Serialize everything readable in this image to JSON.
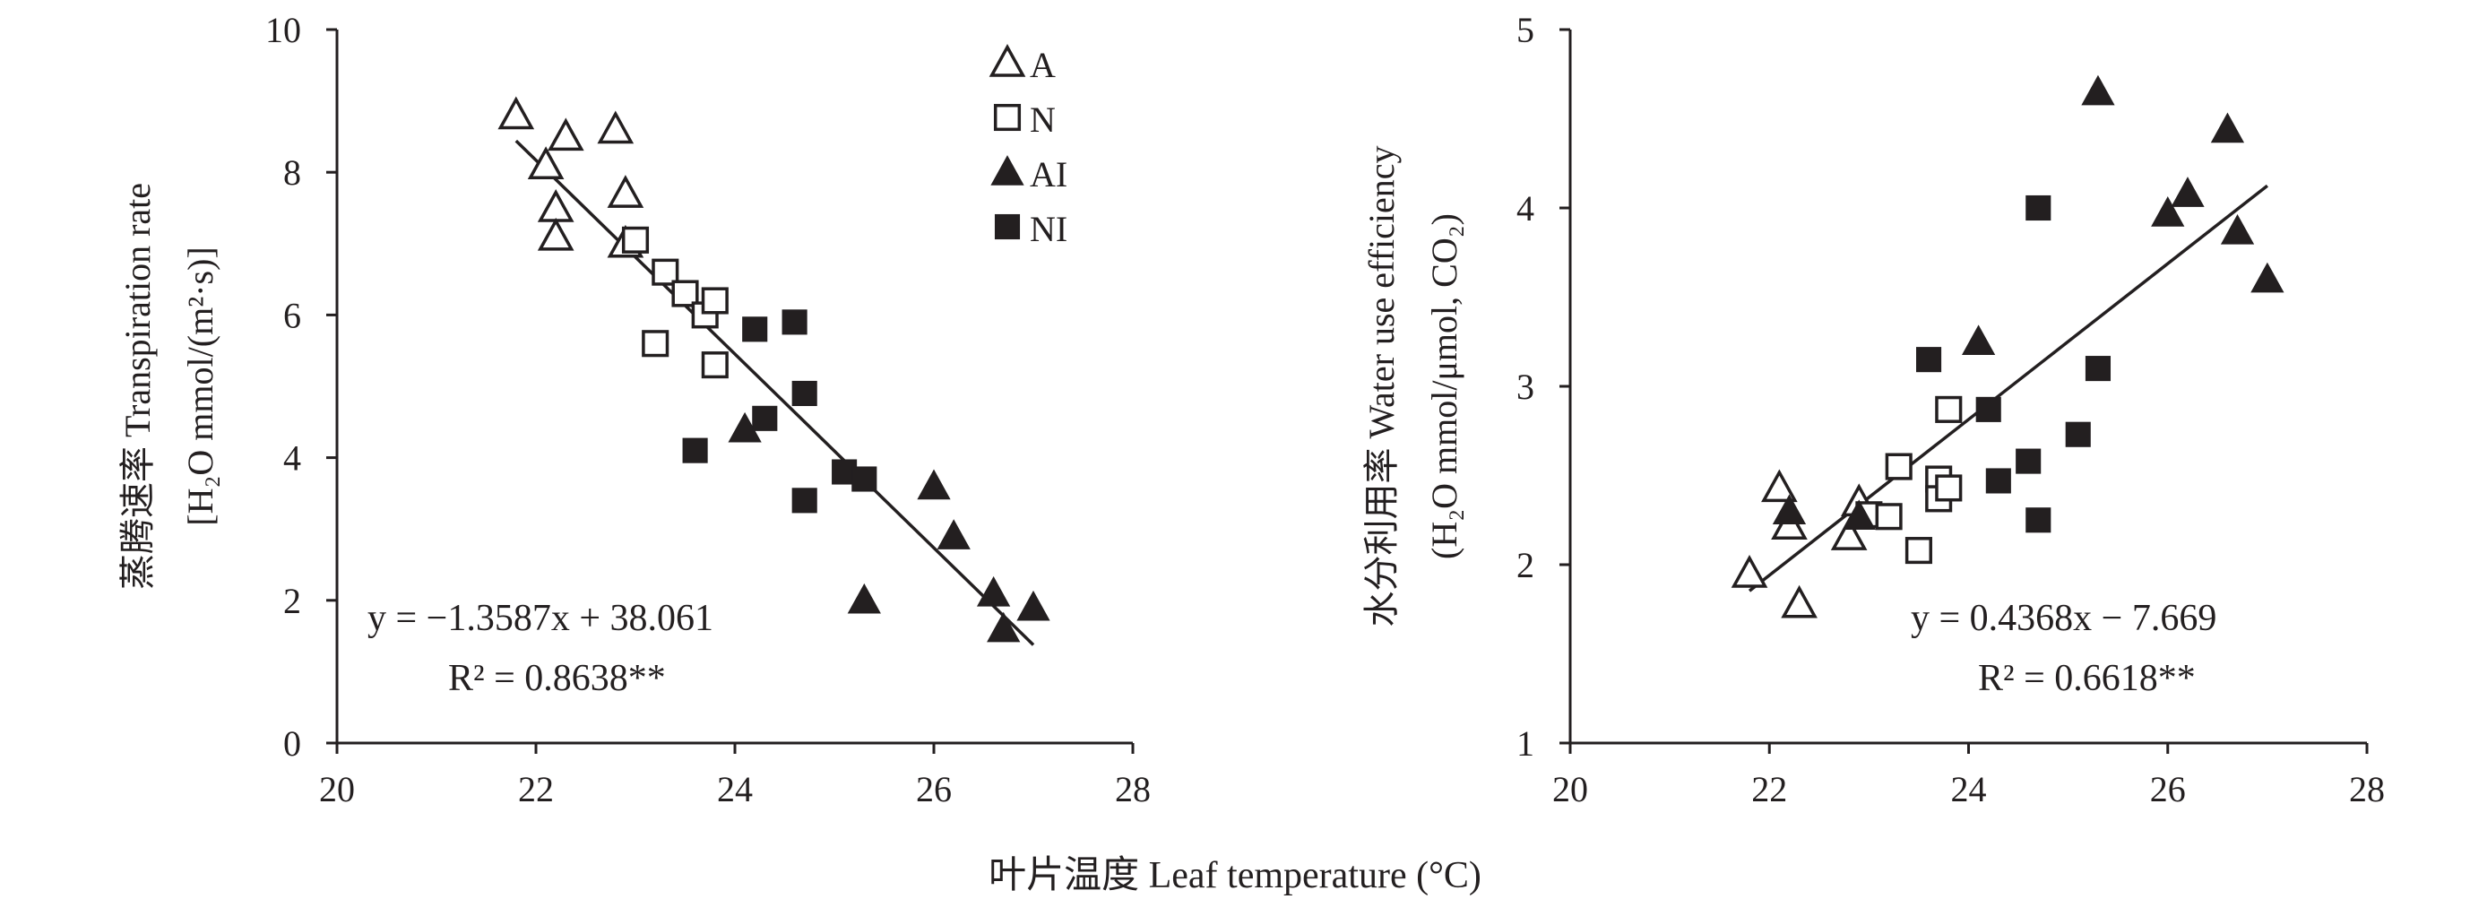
{
  "chart_data": [
    {
      "type": "scatter",
      "xlim": [
        20,
        28
      ],
      "ylim": [
        0,
        10
      ],
      "x_ticks": [
        "20",
        "22",
        "24",
        "26",
        "28"
      ],
      "y_ticks": [
        "0",
        "2",
        "4",
        "6",
        "8",
        "10"
      ],
      "ylabel_line1": "蒸腾速率 Transpiration rate",
      "ylabel_line2": "[H₂O mmol/(m²·s)]",
      "legend": [
        "A",
        "N",
        "AI",
        "NI"
      ],
      "equation": "y = −1.3587x + 38.061",
      "r2": "R² = 0.8638**",
      "fit": {
        "slope": -1.3587,
        "intercept": 38.061,
        "x_range": [
          21.8,
          27.0
        ]
      },
      "series": [
        {
          "name": "A",
          "marker": "open-triangle",
          "points": [
            [
              21.8,
              8.8
            ],
            [
              22.1,
              8.1
            ],
            [
              22.3,
              8.5
            ],
            [
              22.2,
              7.5
            ],
            [
              22.2,
              7.1
            ],
            [
              22.8,
              8.6
            ],
            [
              22.9,
              7.7
            ],
            [
              22.9,
              7.0
            ]
          ]
        },
        {
          "name": "N",
          "marker": "open-square",
          "points": [
            [
              23.0,
              7.05
            ],
            [
              23.3,
              6.6
            ],
            [
              23.5,
              6.3
            ],
            [
              23.7,
              6.0
            ],
            [
              23.8,
              6.2
            ],
            [
              23.2,
              5.6
            ],
            [
              23.8,
              5.3
            ]
          ]
        },
        {
          "name": "AI",
          "marker": "filled-triangle",
          "points": [
            [
              24.1,
              4.4
            ],
            [
              25.3,
              2.0
            ],
            [
              26.0,
              3.6
            ],
            [
              26.2,
              2.9
            ],
            [
              26.6,
              2.1
            ],
            [
              26.7,
              1.6
            ],
            [
              27.0,
              1.9
            ]
          ]
        },
        {
          "name": "NI",
          "marker": "filled-square",
          "points": [
            [
              23.6,
              4.1
            ],
            [
              24.2,
              5.8
            ],
            [
              24.3,
              4.55
            ],
            [
              24.6,
              5.9
            ],
            [
              24.7,
              4.9
            ],
            [
              24.7,
              3.4
            ],
            [
              25.1,
              3.8
            ],
            [
              25.3,
              3.7
            ]
          ]
        }
      ]
    },
    {
      "type": "scatter",
      "xlim": [
        20,
        28
      ],
      "ylim": [
        1,
        5
      ],
      "x_ticks": [
        "20",
        "22",
        "24",
        "26",
        "28"
      ],
      "y_ticks": [
        "1",
        "2",
        "3",
        "4",
        "5"
      ],
      "ylabel_line1": "水分利用率 Water use efficiency",
      "ylabel_line2": "(H₂O mmol/μmol, CO₂)",
      "equation": "y = 0.4368x − 7.669",
      "r2": "R² = 0.6618**",
      "fit": {
        "slope": 0.4368,
        "intercept": -7.669,
        "x_range": [
          21.8,
          27.0
        ]
      },
      "series": [
        {
          "name": "A",
          "marker": "open-triangle",
          "points": [
            [
              21.8,
              1.95
            ],
            [
              22.1,
              2.43
            ],
            [
              22.2,
              2.22
            ],
            [
              22.3,
              1.78
            ],
            [
              22.8,
              2.16
            ],
            [
              22.9,
              2.35
            ]
          ]
        },
        {
          "name": "N",
          "marker": "open-square",
          "points": [
            [
              23.0,
              2.28
            ],
            [
              23.2,
              2.27
            ],
            [
              23.3,
              2.55
            ],
            [
              23.5,
              2.08
            ],
            [
              23.7,
              2.48
            ],
            [
              23.7,
              2.37
            ],
            [
              23.8,
              2.43
            ],
            [
              23.8,
              2.87
            ]
          ]
        },
        {
          "name": "AI",
          "marker": "filled-triangle",
          "points": [
            [
              22.2,
              2.3
            ],
            [
              22.9,
              2.27
            ],
            [
              24.1,
              3.25
            ],
            [
              25.3,
              4.65
            ],
            [
              26.0,
              3.97
            ],
            [
              26.2,
              4.08
            ],
            [
              26.6,
              4.44
            ],
            [
              26.7,
              3.87
            ],
            [
              27.0,
              3.6
            ]
          ]
        },
        {
          "name": "NI",
          "marker": "filled-square",
          "points": [
            [
              23.6,
              3.15
            ],
            [
              24.2,
              2.87
            ],
            [
              24.3,
              2.47
            ],
            [
              24.6,
              2.58
            ],
            [
              24.7,
              4.0
            ],
            [
              24.7,
              2.25
            ],
            [
              25.1,
              2.73
            ],
            [
              25.3,
              3.1
            ]
          ]
        }
      ]
    }
  ],
  "shared": {
    "xlabel": "叶片温度 Leaf  temperature (°C)"
  }
}
